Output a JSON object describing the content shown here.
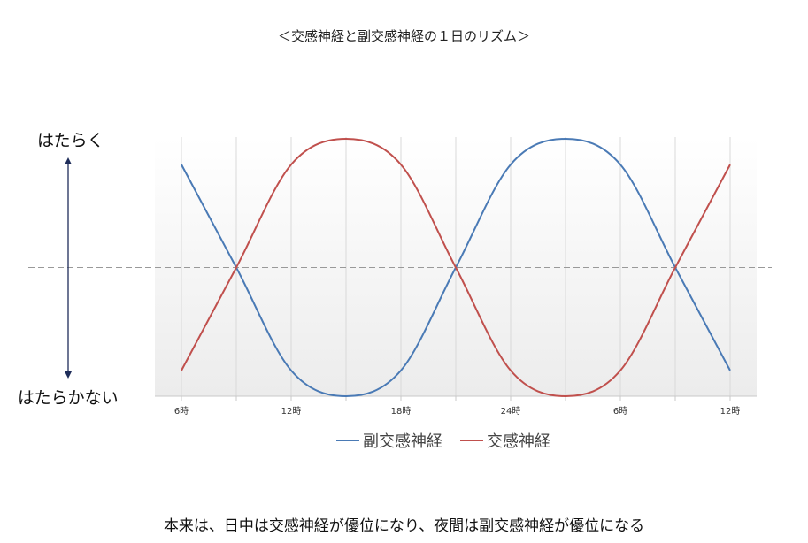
{
  "chart_data": {
    "type": "line",
    "title": "＜交感神経と副交感神経の１日のリズム＞",
    "ylabel_top": "はたらく",
    "ylabel_bottom": "はたらかない",
    "categories": [
      "6時",
      "",
      "12時",
      "",
      "18時",
      "",
      "24時",
      "",
      "6時",
      "",
      "12時"
    ],
    "x": [
      0,
      1,
      2,
      3,
      4,
      5,
      6,
      7,
      8,
      9,
      10
    ],
    "ylim": [
      0,
      1
    ],
    "grid": true,
    "legend_position": "bottom",
    "series": [
      {
        "name": "副交感神経",
        "color": "#4a7ab5",
        "values": [
          0.9,
          0.5,
          0.1,
          0.0,
          0.1,
          0.5,
          0.9,
          1.0,
          0.9,
          0.5,
          0.1
        ]
      },
      {
        "name": "交感神経",
        "color": "#c0504d",
        "values": [
          0.1,
          0.5,
          0.9,
          1.0,
          0.9,
          0.5,
          0.1,
          0.0,
          0.1,
          0.5,
          0.9
        ]
      }
    ]
  },
  "caption": "本来は、日中は交感神経が優位になり、夜間は副交感神経が優位になる"
}
